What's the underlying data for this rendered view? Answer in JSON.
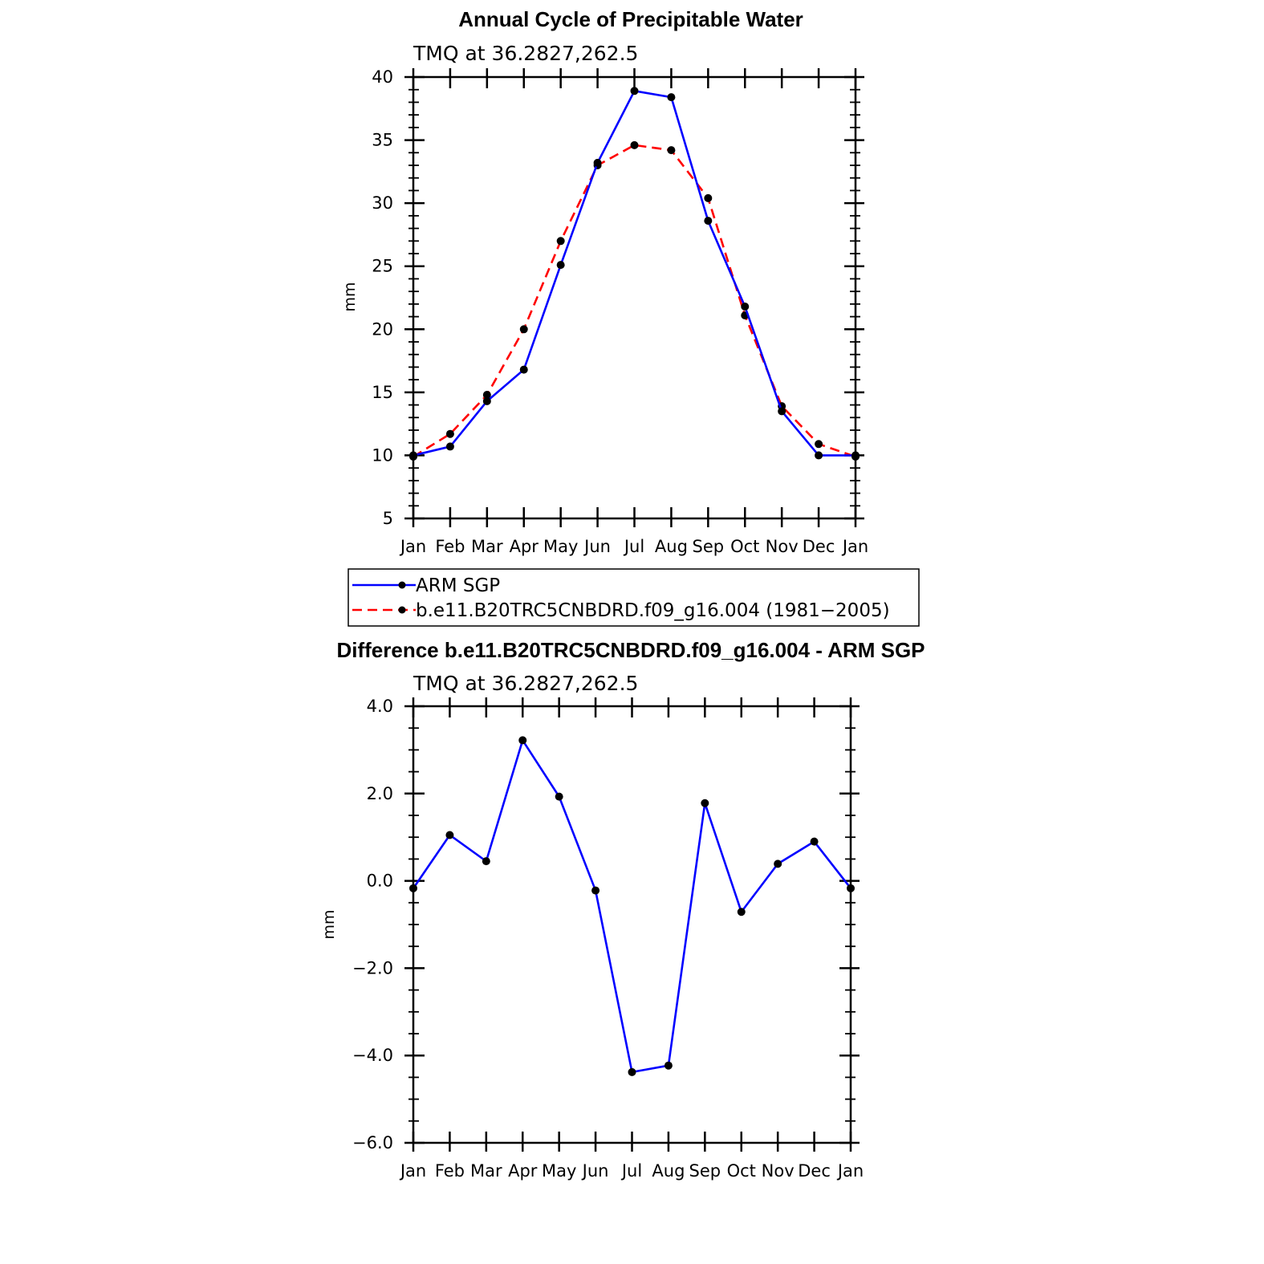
{
  "chart_data": [
    {
      "type": "line",
      "title": "Annual Cycle of Precipitable Water",
      "subtitle": "TMQ  at  36.2827,262.5",
      "xlabel": "",
      "ylabel": "mm",
      "categories": [
        "Jan",
        "Feb",
        "Mar",
        "Apr",
        "May",
        "Jun",
        "Jul",
        "Aug",
        "Sep",
        "Oct",
        "Nov",
        "Dec",
        "Jan"
      ],
      "ylim": [
        5,
        40
      ],
      "yticks": [
        "5",
        "10",
        "15",
        "20",
        "25",
        "30",
        "35",
        "40"
      ],
      "ytick_values": [
        5,
        10,
        15,
        20,
        25,
        30,
        35,
        40
      ],
      "grid": false,
      "legend_position": "bottom",
      "series": [
        {
          "name": "ARM SGP",
          "color": "#0000ff",
          "style": "solid",
          "values": [
            10.0,
            10.7,
            14.3,
            16.8,
            25.1,
            33.2,
            38.9,
            38.4,
            28.6,
            21.8,
            13.5,
            10.0,
            10.0
          ]
        },
        {
          "name": "b.e11.B20TRC5CNBDRD.f09_g16.004 (1981−2005)",
          "color": "#ff0000",
          "style": "dashed",
          "values": [
            9.9,
            11.7,
            14.8,
            20.0,
            27.0,
            33.0,
            34.6,
            34.2,
            30.4,
            21.1,
            13.9,
            10.9,
            9.9
          ]
        }
      ]
    },
    {
      "type": "line",
      "title": "Difference b.e11.B20TRC5CNBDRD.f09_g16.004 - ARM SGP",
      "subtitle": "TMQ  at  36.2827,262.5",
      "xlabel": "",
      "ylabel": "mm",
      "categories": [
        "Jan",
        "Feb",
        "Mar",
        "Apr",
        "May",
        "Jun",
        "Jul",
        "Aug",
        "Sep",
        "Oct",
        "Nov",
        "Dec",
        "Jan"
      ],
      "ylim": [
        -6,
        4
      ],
      "yticks": [
        "−6.0",
        "−4.0",
        "−2.0",
        "0.0",
        "2.0",
        "4.0"
      ],
      "ytick_values": [
        -6,
        -4,
        -2,
        0,
        2,
        4
      ],
      "grid": false,
      "series": [
        {
          "name": "",
          "color": "#0000ff",
          "style": "solid",
          "values": [
            -0.17,
            1.05,
            0.45,
            3.22,
            1.93,
            -0.22,
            -4.38,
            -4.23,
            1.78,
            -0.71,
            0.39,
            0.9,
            -0.17
          ]
        }
      ]
    }
  ]
}
